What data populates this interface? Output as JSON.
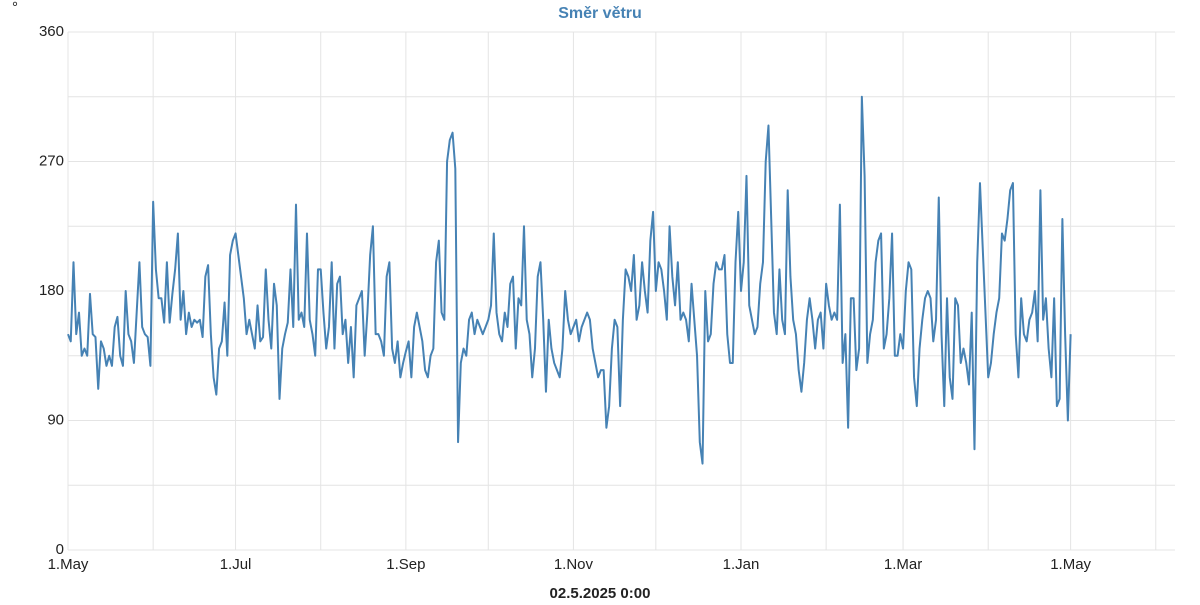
{
  "chart_data": {
    "type": "line",
    "title": "Směr větru",
    "y_unit": "°",
    "x_label": "02.5.2025 0:00",
    "color": "#4682b4",
    "xlim": [
      0,
      403
    ],
    "xticks": [
      {
        "value": 0,
        "label": "1.May"
      },
      {
        "value": 61,
        "label": "1.Jul"
      },
      {
        "value": 123,
        "label": "1.Sep"
      },
      {
        "value": 184,
        "label": "1.Nov"
      },
      {
        "value": 245,
        "label": "1.Jan"
      },
      {
        "value": 304,
        "label": "1.Mar"
      },
      {
        "value": 365,
        "label": "1.May"
      }
    ],
    "minor_xticks": [
      31,
      92,
      153,
      214,
      276,
      335,
      396
    ],
    "ylim": [
      0,
      360
    ],
    "yticks": [
      0,
      90,
      180,
      270,
      360
    ],
    "minor_yticks": [
      45,
      135,
      225,
      315
    ],
    "grid": true,
    "values": [
      150,
      145,
      200,
      150,
      165,
      135,
      140,
      135,
      178,
      150,
      148,
      112,
      145,
      140,
      128,
      135,
      128,
      155,
      162,
      135,
      128,
      180,
      150,
      145,
      130,
      165,
      200,
      155,
      150,
      148,
      128,
      242,
      195,
      175,
      175,
      158,
      200,
      158,
      178,
      195,
      220,
      160,
      180,
      150,
      165,
      155,
      160,
      158,
      160,
      148,
      190,
      198,
      150,
      120,
      108,
      140,
      145,
      172,
      135,
      205,
      215,
      220,
      205,
      190,
      175,
      150,
      160,
      150,
      140,
      170,
      145,
      148,
      195,
      160,
      140,
      185,
      170,
      105,
      140,
      150,
      158,
      195,
      155,
      240,
      160,
      165,
      155,
      220,
      160,
      150,
      135,
      195,
      195,
      165,
      140,
      155,
      200,
      140,
      185,
      190,
      150,
      160,
      130,
      155,
      120,
      170,
      175,
      180,
      135,
      165,
      205,
      225,
      150,
      150,
      145,
      135,
      190,
      200,
      140,
      130,
      145,
      120,
      130,
      138,
      145,
      120,
      155,
      165,
      155,
      145,
      125,
      120,
      135,
      140,
      200,
      215,
      165,
      160,
      270,
      285,
      290,
      265,
      75,
      130,
      140,
      135,
      160,
      165,
      150,
      160,
      155,
      150,
      155,
      160,
      170,
      220,
      165,
      150,
      145,
      165,
      155,
      185,
      190,
      140,
      175,
      170,
      225,
      160,
      150,
      120,
      140,
      190,
      200,
      160,
      110,
      160,
      140,
      130,
      125,
      120,
      140,
      180,
      160,
      150,
      155,
      160,
      145,
      155,
      160,
      165,
      160,
      140,
      130,
      120,
      125,
      125,
      85,
      100,
      140,
      160,
      155,
      100,
      160,
      195,
      190,
      180,
      205,
      160,
      170,
      200,
      180,
      165,
      215,
      235,
      180,
      200,
      195,
      180,
      160,
      225,
      190,
      170,
      200,
      160,
      165,
      160,
      145,
      185,
      160,
      135,
      75,
      60,
      180,
      145,
      150,
      185,
      200,
      195,
      195,
      205,
      150,
      130,
      130,
      200,
      235,
      180,
      200,
      260,
      170,
      160,
      150,
      155,
      185,
      200,
      270,
      295,
      230,
      165,
      150,
      195,
      160,
      150,
      250,
      190,
      160,
      150,
      125,
      110,
      130,
      160,
      175,
      160,
      140,
      160,
      165,
      140,
      185,
      170,
      160,
      165,
      160,
      240,
      130,
      150,
      85,
      175,
      175,
      125,
      140,
      315,
      260,
      130,
      150,
      160,
      200,
      215,
      220,
      140,
      150,
      175,
      220,
      135,
      135,
      150,
      140,
      180,
      200,
      195,
      120,
      100,
      140,
      160,
      175,
      180,
      175,
      145,
      160,
      245,
      150,
      100,
      175,
      120,
      105,
      175,
      170,
      130,
      140,
      130,
      115,
      165,
      70,
      200,
      255,
      210,
      165,
      120,
      130,
      150,
      165,
      175,
      220,
      215,
      230,
      250,
      255,
      150,
      120,
      175,
      150,
      145,
      160,
      165,
      180,
      145,
      250,
      160,
      175,
      140,
      120,
      175,
      100,
      105,
      230,
      150,
      90,
      150
    ]
  }
}
